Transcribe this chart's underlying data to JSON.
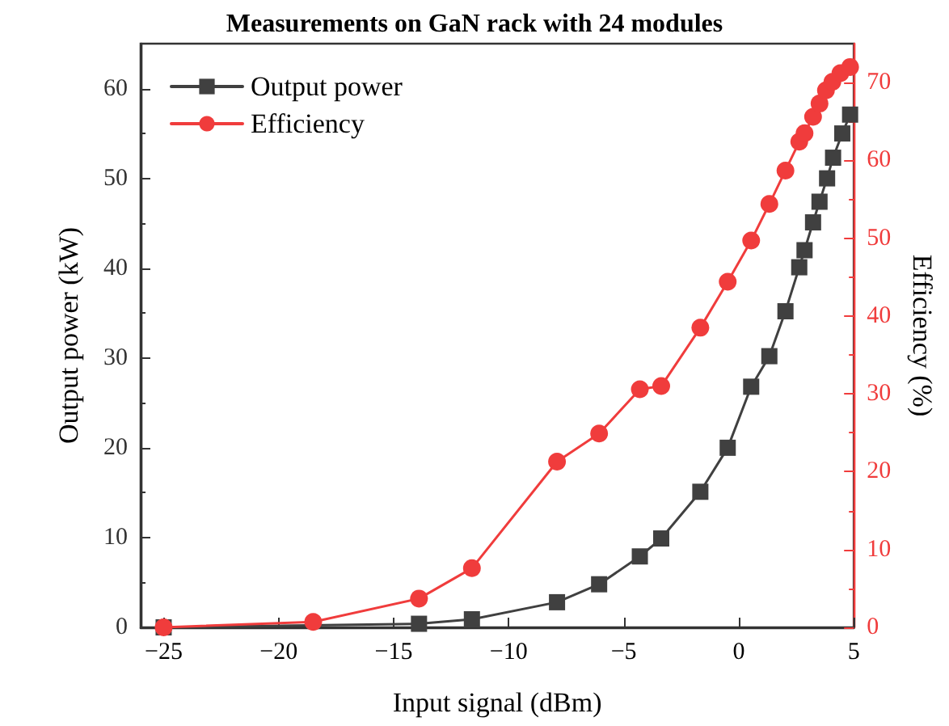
{
  "chart_data": {
    "type": "line",
    "title": "Measurements on GaN rack with 24 modules",
    "xlabel": "Input signal (dBm)",
    "ylabel": "Output power (kW)",
    "y2label": "Efficiency (%)",
    "xlim": [
      -26,
      5
    ],
    "xticks": [
      -25,
      -20,
      -15,
      -10,
      -5,
      0,
      5
    ],
    "ylim": [
      0,
      65
    ],
    "yticks": [
      0,
      10,
      20,
      30,
      40,
      50,
      60
    ],
    "y2lim": [
      0,
      75
    ],
    "y2ticks": [
      0,
      10,
      20,
      30,
      40,
      50,
      60,
      70
    ],
    "grid": false,
    "legend": "top left",
    "line_style": "solid",
    "series": [
      {
        "name": "Output power",
        "color": "#404040",
        "marker": "square",
        "x": [
          -25,
          -13.9,
          -11.6,
          -7.9,
          -6.07,
          -4.3,
          -3.37,
          -1.67,
          -0.48,
          0.54,
          1.33,
          2.03,
          2.63,
          2.86,
          3.23,
          3.51,
          3.84,
          4.1,
          4.5,
          4.84
        ],
        "values": [
          0,
          0.4,
          0.9,
          2.8,
          4.8,
          7.9,
          9.9,
          15.1,
          20.0,
          26.8,
          30.2,
          35.2,
          40.1,
          42.0,
          45.1,
          47.4,
          50.0,
          52.3,
          55.0,
          57.1
        ]
      },
      {
        "name": "Efficiency",
        "color": "#f03c3c",
        "marker": "circle",
        "axis": "y2",
        "x": [
          -25,
          -18.5,
          -13.9,
          -11.6,
          -7.9,
          -6.07,
          -4.3,
          -3.37,
          -1.67,
          -0.48,
          0.54,
          1.33,
          2.03,
          2.63,
          2.86,
          3.23,
          3.51,
          3.79,
          4.07,
          4.42,
          4.84
        ],
        "values": [
          0,
          0.7,
          3.7,
          7.6,
          21.3,
          24.9,
          30.6,
          31.0,
          38.5,
          44.4,
          49.7,
          54.4,
          58.7,
          62.4,
          63.5,
          65.6,
          67.3,
          69.0,
          70.1,
          71.2,
          72.0
        ]
      }
    ]
  }
}
